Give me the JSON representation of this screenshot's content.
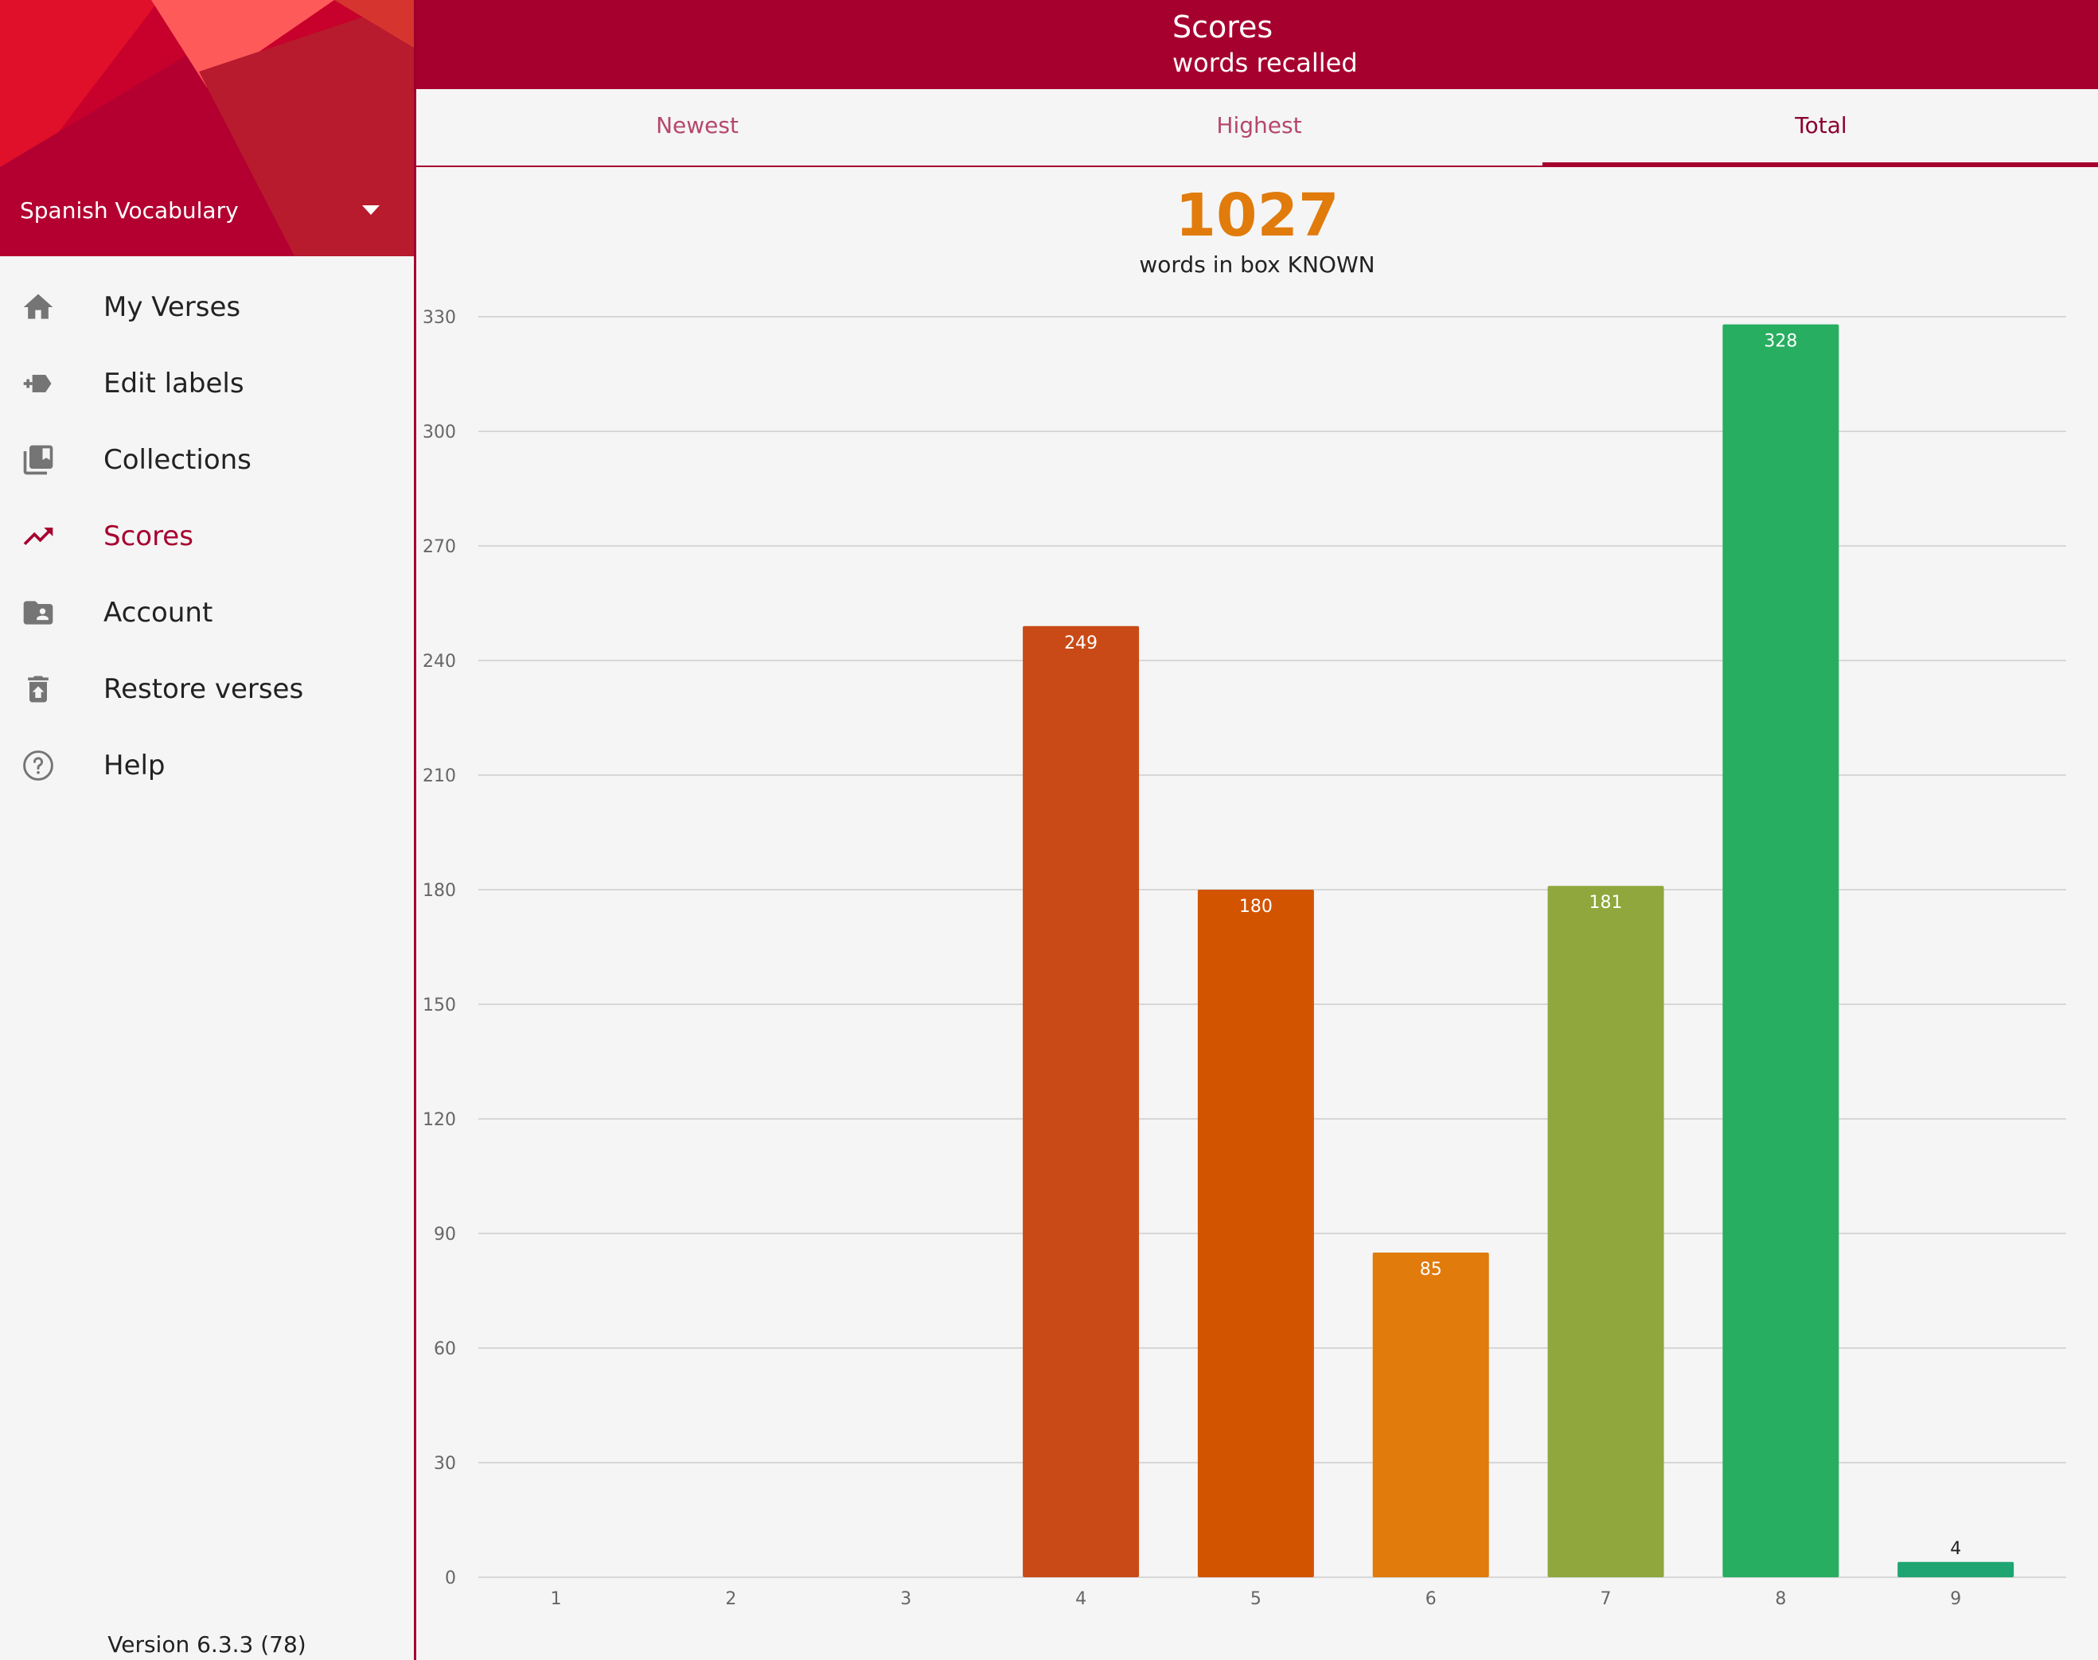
{
  "sidebar": {
    "account_name": "Spanish Vocabulary",
    "items": [
      {
        "label": "My Verses",
        "icon": "home-icon"
      },
      {
        "label": "Edit labels",
        "icon": "label-add-icon"
      },
      {
        "label": "Collections",
        "icon": "collections-bookmark-icon"
      },
      {
        "label": "Scores",
        "icon": "trending-up-icon",
        "active": true
      },
      {
        "label": "Account",
        "icon": "account-folder-icon"
      },
      {
        "label": "Restore verses",
        "icon": "restore-from-trash-icon"
      },
      {
        "label": "Help",
        "icon": "help-circle-icon"
      }
    ],
    "version": "Version 6.3.3 (78)"
  },
  "appbar": {
    "title": "Scores",
    "subtitle": "words recalled"
  },
  "tabs": [
    {
      "label": "Newest",
      "active": false
    },
    {
      "label": "Highest",
      "active": false
    },
    {
      "label": "Total",
      "active": true
    }
  ],
  "summary": {
    "total": "1027",
    "caption": "words in box KNOWN"
  },
  "colors": {
    "brand": "#a6002f",
    "total_number": "#e07b0c"
  },
  "chart_data": {
    "type": "bar",
    "categories": [
      "1",
      "2",
      "3",
      "4",
      "5",
      "6",
      "7",
      "8",
      "9"
    ],
    "values": [
      0,
      0,
      0,
      249,
      180,
      85,
      181,
      328,
      4
    ],
    "bar_colors": [
      "#c94a16",
      "#c94a16",
      "#c94a16",
      "#c94a16",
      "#d35400",
      "#e07b0c",
      "#8fa73d",
      "#27ae60",
      "#1fa572"
    ],
    "ylim": [
      0,
      330
    ],
    "yticks": [
      0,
      30,
      60,
      90,
      120,
      150,
      180,
      210,
      240,
      270,
      300,
      330
    ],
    "grid": true
  }
}
